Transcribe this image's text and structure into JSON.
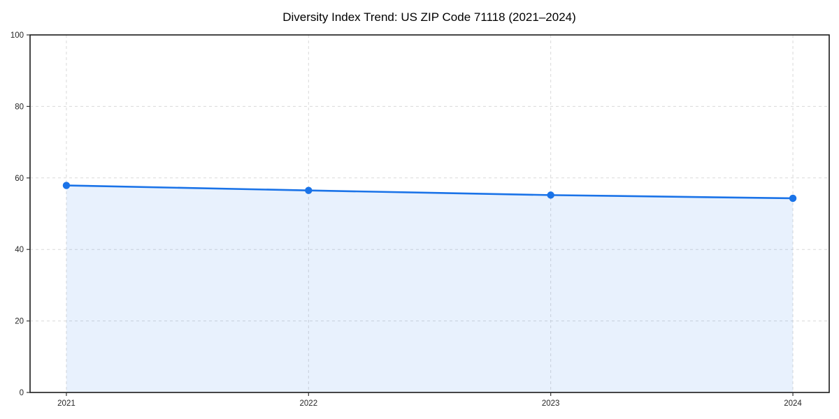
{
  "chart_data": {
    "type": "line",
    "title": "Diversity Index Trend: US ZIP Code 71118 (2021–2024)",
    "series_name": "Diversity Index",
    "x": [
      2021,
      2022,
      2023,
      2024
    ],
    "categories": [
      "2021",
      "2022",
      "2023",
      "2024"
    ],
    "values": [
      57.9,
      56.5,
      55.2,
      54.3
    ],
    "xlabel": "",
    "ylabel": "",
    "ylim": [
      0,
      100
    ],
    "yticks": [
      0,
      20,
      40,
      60,
      80,
      100
    ],
    "ytick_labels": [
      "0",
      "20",
      "40",
      "60",
      "80",
      "100"
    ],
    "x_margin_frac": 0.05,
    "grid": true,
    "grid_style": "dashed",
    "legend": false,
    "area_fill": true,
    "marker": "circle",
    "colors": {
      "line": "#1a73e8",
      "marker": "#1a73e8",
      "fill": "rgba(26, 115, 232, 0.10)",
      "grid": "#d9d9d9",
      "spine": "#1a1a1a",
      "tick": "#333333",
      "background": "#ffffff"
    }
  }
}
